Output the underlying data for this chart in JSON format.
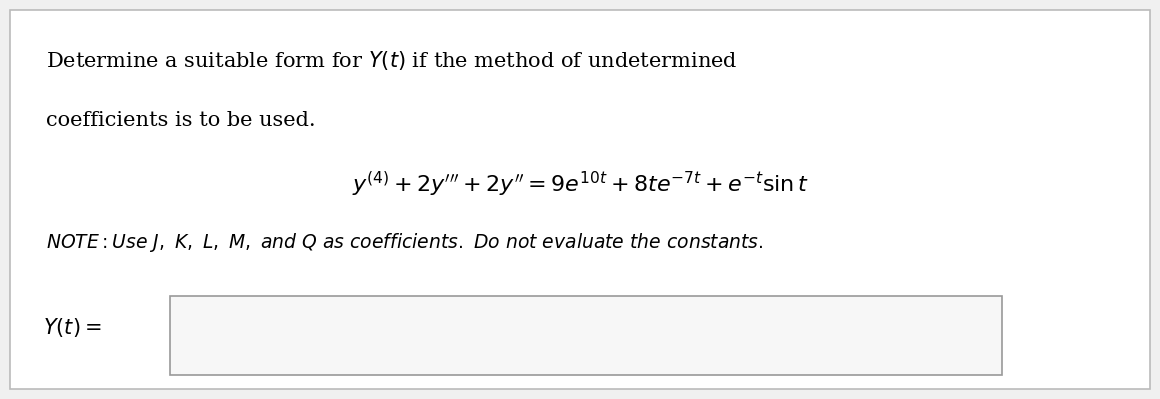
{
  "bg_color": "#f0f0f0",
  "panel_color": "#ffffff",
  "panel_border_color": "#bbbbbb",
  "text_color": "#000000",
  "title_line1": "Determine a suitable form for $Y(t)$ if the method of undetermined",
  "title_line2": "coefficients is to be used.",
  "equation": "$y^{(4)} + 2y''' + 2y'' = 9e^{10t} + 8te^{-7t} + e^{-t}\\sin t$",
  "note_plain": "NOTE: Use J, K, L, M, and Q as coefficients. Do not evaluate the constants.",
  "ylabel": "$Y(t) =$",
  "font_size_main": 15,
  "font_size_eq": 16,
  "font_size_note": 13.5,
  "font_size_ylabel": 15
}
